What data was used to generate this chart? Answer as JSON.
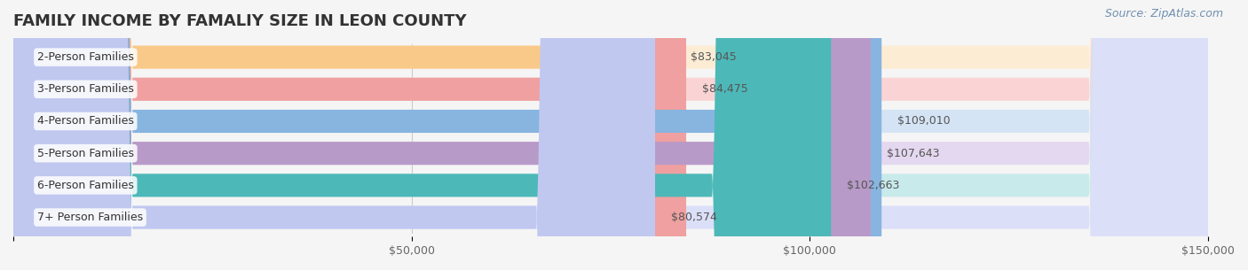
{
  "title": "FAMILY INCOME BY FAMALIY SIZE IN LEON COUNTY",
  "source": "Source: ZipAtlas.com",
  "categories": [
    "2-Person Families",
    "3-Person Families",
    "4-Person Families",
    "5-Person Families",
    "6-Person Families",
    "7+ Person Families"
  ],
  "values": [
    83045,
    84475,
    109010,
    107643,
    102663,
    80574
  ],
  "bar_colors": [
    "#f9c98a",
    "#f0a0a0",
    "#88b4e0",
    "#b89ac8",
    "#4db8b8",
    "#c0c8f0"
  ],
  "bar_bg_colors": [
    "#fdecd4",
    "#fad4d4",
    "#d4e4f4",
    "#e4d8f0",
    "#c8eaea",
    "#dcdff8"
  ],
  "value_labels": [
    "$83,045",
    "$84,475",
    "$109,010",
    "$107,643",
    "$102,663",
    "$80,574"
  ],
  "xmin": 0,
  "xmax": 150000,
  "xticks": [
    0,
    50000,
    100000,
    150000
  ],
  "xtick_labels": [
    "",
    "$50,000",
    "$100,000",
    "$150,000"
  ],
  "title_fontsize": 13,
  "label_fontsize": 9,
  "source_fontsize": 9,
  "background_color": "#f5f5f5"
}
